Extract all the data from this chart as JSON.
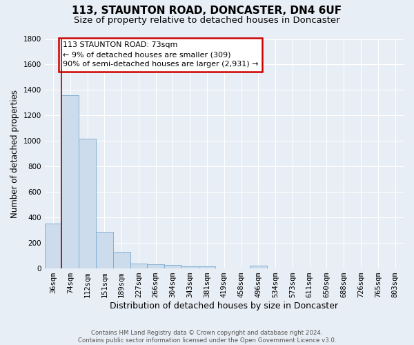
{
  "title1": "113, STAUNTON ROAD, DONCASTER, DN4 6UF",
  "title2": "Size of property relative to detached houses in Doncaster",
  "xlabel": "Distribution of detached houses by size in Doncaster",
  "ylabel": "Number of detached properties",
  "footnote": "Contains HM Land Registry data © Crown copyright and database right 2024.\nContains public sector information licensed under the Open Government Licence v3.0.",
  "bin_labels": [
    "36sqm",
    "74sqm",
    "112sqm",
    "151sqm",
    "189sqm",
    "227sqm",
    "266sqm",
    "304sqm",
    "343sqm",
    "381sqm",
    "419sqm",
    "458sqm",
    "496sqm",
    "534sqm",
    "573sqm",
    "611sqm",
    "650sqm",
    "688sqm",
    "726sqm",
    "765sqm",
    "803sqm"
  ],
  "bar_heights": [
    350,
    1360,
    1020,
    290,
    130,
    40,
    35,
    25,
    15,
    15,
    0,
    0,
    20,
    0,
    0,
    0,
    0,
    0,
    0,
    0,
    0
  ],
  "bar_color": "#ccdcec",
  "bar_edge_color": "#7aaace",
  "background_color": "#e8eef5",
  "plot_background_color": "#e8eef5",
  "grid_color": "#ffffff",
  "vline_x": 0.5,
  "vline_color": "#aa0000",
  "annotation_text": "113 STAUNTON ROAD: 73sqm\n← 9% of detached houses are smaller (309)\n90% of semi-detached houses are larger (2,931) →",
  "annotation_box_color": "#cc0000",
  "ylim": [
    0,
    1800
  ],
  "yticks": [
    0,
    200,
    400,
    600,
    800,
    1000,
    1200,
    1400,
    1600,
    1800
  ],
  "title1_fontsize": 11,
  "title2_fontsize": 9.5,
  "xlabel_fontsize": 9,
  "ylabel_fontsize": 8.5,
  "tick_fontsize": 7.5,
  "annotation_fontsize": 8
}
